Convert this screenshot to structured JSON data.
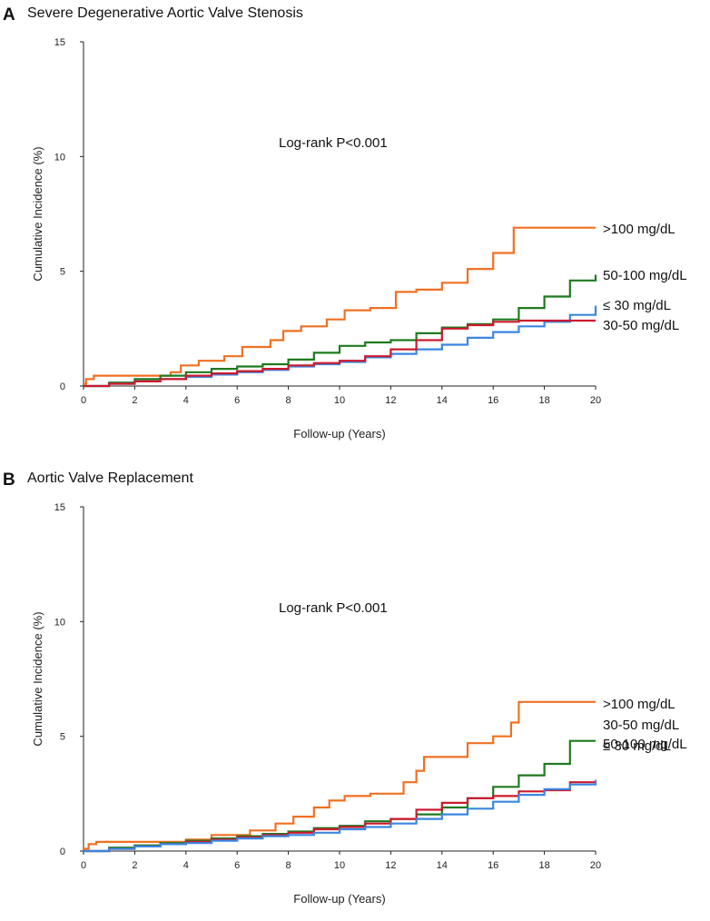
{
  "chart_data": [
    {
      "panel": "A",
      "type": "line",
      "title": "Severe Degenerative Aortic Valve Stenosis",
      "xlabel": "Follow-up  (Years)",
      "ylabel": "Cumulative Incidence (%)",
      "xlim": [
        0,
        20
      ],
      "ylim": [
        0,
        15
      ],
      "xticks": [
        "0",
        "2",
        "4",
        "6",
        "8",
        "10",
        "12",
        "14",
        "16",
        "18",
        "20"
      ],
      "yticks": [
        "0",
        "5",
        "10",
        "15"
      ],
      "annotation": "Log-rank P<0.001",
      "series": [
        {
          "name": ">100 mg/dL",
          "color": "#f07020",
          "x": [
            0,
            0.1,
            0.4,
            0.9,
            3.4,
            3.8,
            4.5,
            5.5,
            6.2,
            7.3,
            7.8,
            8.5,
            9.5,
            10.2,
            11.2,
            12.2,
            13.0,
            14.0,
            15.0,
            16.0,
            16.8,
            17.5,
            20.0
          ],
          "y": [
            0.1,
            0.3,
            0.45,
            0.45,
            0.6,
            0.9,
            1.1,
            1.3,
            1.7,
            2.0,
            2.4,
            2.6,
            2.9,
            3.3,
            3.4,
            4.1,
            4.2,
            4.5,
            5.1,
            5.8,
            6.9,
            6.9,
            6.9
          ]
        },
        {
          "name": "50-100 mg/dL",
          "color": "#1f7a1f",
          "x": [
            0,
            1,
            2,
            3,
            4,
            5,
            6,
            7,
            8,
            9,
            10,
            11,
            12,
            13,
            14,
            15,
            16,
            17,
            18,
            19,
            20
          ],
          "y": [
            0,
            0.15,
            0.3,
            0.45,
            0.6,
            0.75,
            0.85,
            0.95,
            1.15,
            1.45,
            1.75,
            1.9,
            2.0,
            2.3,
            2.55,
            2.7,
            2.9,
            3.4,
            3.9,
            4.6,
            4.85
          ]
        },
        {
          "name": "≤ 30 mg/dL",
          "color": "#3a86e0",
          "x": [
            0,
            1,
            2,
            3,
            4,
            5,
            6,
            7,
            8,
            9,
            10,
            11,
            12,
            13,
            14,
            15,
            16,
            17,
            18,
            19,
            20
          ],
          "y": [
            0,
            0.1,
            0.2,
            0.3,
            0.4,
            0.5,
            0.6,
            0.7,
            0.85,
            0.95,
            1.05,
            1.25,
            1.4,
            1.6,
            1.8,
            2.1,
            2.35,
            2.6,
            2.8,
            3.1,
            3.5
          ]
        },
        {
          "name": "30-50 mg/dL",
          "color": "#cc1a2e",
          "x": [
            0,
            1,
            2,
            3,
            4,
            5,
            6,
            7,
            8,
            9,
            10,
            11,
            12,
            13,
            14,
            15,
            16,
            17,
            18,
            19,
            20
          ],
          "y": [
            0,
            0.1,
            0.2,
            0.3,
            0.45,
            0.55,
            0.65,
            0.75,
            0.9,
            1.0,
            1.1,
            1.3,
            1.6,
            2.0,
            2.5,
            2.65,
            2.8,
            2.85,
            2.85,
            2.85,
            2.85
          ]
        }
      ]
    },
    {
      "panel": "B",
      "type": "line",
      "title": "Aortic Valve Replacement",
      "xlabel": "Follow-up  (Years)",
      "ylabel": "Cumulative Incidence (%)",
      "xlim": [
        0,
        20
      ],
      "ylim": [
        0,
        15
      ],
      "xticks": [
        "0",
        "2",
        "4",
        "6",
        "8",
        "10",
        "12",
        "14",
        "16",
        "18",
        "20"
      ],
      "yticks": [
        "0",
        "5",
        "10",
        "15"
      ],
      "annotation": "Log-rank P<0.001",
      "series": [
        {
          "name": ">100 mg/dL",
          "color": "#f07020",
          "x": [
            0,
            0.2,
            0.5,
            1.0,
            4.0,
            5.0,
            6.5,
            7.5,
            8.2,
            9.0,
            9.6,
            10.2,
            11.2,
            12.5,
            13.0,
            13.3,
            14.0,
            15.0,
            16.0,
            16.7,
            17.0,
            20.0
          ],
          "y": [
            0.1,
            0.3,
            0.4,
            0.4,
            0.5,
            0.7,
            0.9,
            1.2,
            1.5,
            1.9,
            2.2,
            2.4,
            2.5,
            3.0,
            3.5,
            4.1,
            4.1,
            4.7,
            5.0,
            5.6,
            6.5,
            6.5
          ]
        },
        {
          "name": "50-100 mg/dL",
          "color": "#1f7a1f",
          "x": [
            0,
            1,
            2,
            3,
            4,
            5,
            6,
            7,
            8,
            9,
            10,
            11,
            12,
            13,
            14,
            15,
            16,
            17,
            18,
            19,
            20
          ],
          "y": [
            0,
            0.15,
            0.25,
            0.35,
            0.45,
            0.55,
            0.65,
            0.75,
            0.85,
            1.0,
            1.1,
            1.3,
            1.4,
            1.6,
            1.9,
            2.3,
            2.8,
            3.3,
            3.8,
            4.8,
            4.8
          ]
        },
        {
          "name": "30-50 mg/dL",
          "color": "#cc1a2e",
          "x": [
            0,
            1,
            2,
            3,
            4,
            5,
            6,
            7,
            8,
            9,
            10,
            11,
            12,
            13,
            14,
            15,
            16,
            17,
            18,
            19,
            20
          ],
          "y": [
            0,
            0.1,
            0.2,
            0.3,
            0.4,
            0.5,
            0.6,
            0.7,
            0.8,
            0.95,
            1.05,
            1.2,
            1.4,
            1.8,
            2.1,
            2.3,
            2.4,
            2.6,
            2.65,
            3.0,
            3.1
          ]
        },
        {
          "name": "≤ 30 mg/dL",
          "color": "#3a86e0",
          "x": [
            0,
            1,
            2,
            3,
            4,
            5,
            6,
            7,
            8,
            9,
            10,
            11,
            12,
            13,
            14,
            15,
            16,
            17,
            18,
            19,
            20
          ],
          "y": [
            0,
            0.1,
            0.2,
            0.3,
            0.35,
            0.45,
            0.55,
            0.65,
            0.7,
            0.8,
            0.95,
            1.05,
            1.2,
            1.4,
            1.6,
            1.85,
            2.15,
            2.45,
            2.7,
            2.9,
            3.1
          ]
        }
      ]
    }
  ]
}
